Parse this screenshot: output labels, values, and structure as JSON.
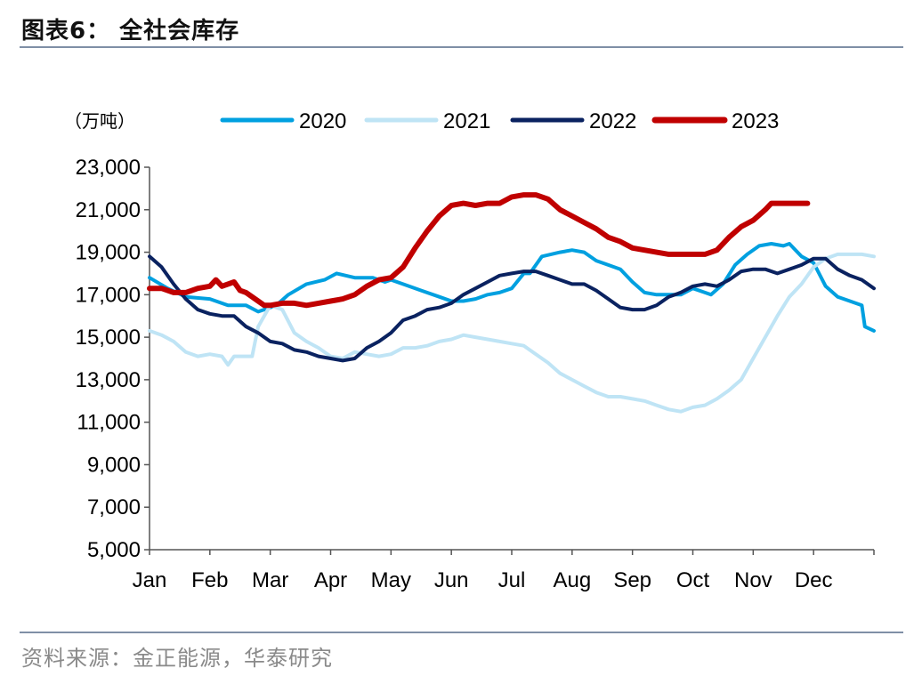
{
  "figure": {
    "title": "图表6：  全社会库存",
    "source": "资料来源：金正能源，华泰研究"
  },
  "chart_data": {
    "type": "line",
    "unit_label": "（万吨）",
    "ylim": [
      5000,
      23000
    ],
    "yticks": [
      5000,
      7000,
      9000,
      11000,
      13000,
      15000,
      17000,
      19000,
      21000,
      23000
    ],
    "ytick_labels": [
      "5,000",
      "7,000",
      "9,000",
      "11,000",
      "13,000",
      "15,000",
      "17,000",
      "19,000",
      "21,000",
      "23,000"
    ],
    "xlim": [
      0,
      12
    ],
    "x_labels": [
      "Jan",
      "Feb",
      "Mar",
      "Apr",
      "May",
      "Jun",
      "Jul",
      "Aug",
      "Sep",
      "Oct",
      "Nov",
      "Dec"
    ],
    "grid": false,
    "legend_position": "top",
    "series": [
      {
        "name": "2020",
        "color": "#00a0e0",
        "points": [
          [
            0,
            17800
          ],
          [
            0.3,
            17300
          ],
          [
            0.6,
            16900
          ],
          [
            1.0,
            16800
          ],
          [
            1.3,
            16500
          ],
          [
            1.6,
            16500
          ],
          [
            1.8,
            16200
          ],
          [
            2.0,
            16400
          ],
          [
            2.1,
            16500
          ],
          [
            2.3,
            17000
          ],
          [
            2.6,
            17500
          ],
          [
            2.9,
            17700
          ],
          [
            3.1,
            18000
          ],
          [
            3.4,
            17800
          ],
          [
            3.7,
            17800
          ],
          [
            3.9,
            17600
          ],
          [
            4.0,
            17700
          ],
          [
            4.2,
            17500
          ],
          [
            4.5,
            17200
          ],
          [
            4.8,
            16900
          ],
          [
            5.0,
            16700
          ],
          [
            5.2,
            16700
          ],
          [
            5.4,
            16800
          ],
          [
            5.6,
            17000
          ],
          [
            5.8,
            17100
          ],
          [
            6.0,
            17300
          ],
          [
            6.2,
            18000
          ],
          [
            6.3,
            18000
          ],
          [
            6.5,
            18800
          ],
          [
            6.8,
            19000
          ],
          [
            7.0,
            19100
          ],
          [
            7.2,
            19000
          ],
          [
            7.4,
            18600
          ],
          [
            7.6,
            18400
          ],
          [
            7.8,
            18200
          ],
          [
            8.0,
            17600
          ],
          [
            8.2,
            17100
          ],
          [
            8.4,
            17000
          ],
          [
            8.6,
            17000
          ],
          [
            8.8,
            17000
          ],
          [
            9.0,
            17300
          ],
          [
            9.2,
            17100
          ],
          [
            9.3,
            17000
          ],
          [
            9.5,
            17500
          ],
          [
            9.7,
            18400
          ],
          [
            9.9,
            18900
          ],
          [
            10.1,
            19300
          ],
          [
            10.3,
            19400
          ],
          [
            10.5,
            19300
          ],
          [
            10.6,
            19400
          ],
          [
            10.8,
            18800
          ],
          [
            11.0,
            18500
          ],
          [
            11.2,
            17400
          ],
          [
            11.4,
            16900
          ],
          [
            11.6,
            16700
          ],
          [
            11.8,
            16500
          ],
          [
            11.85,
            15500
          ],
          [
            12.0,
            15300
          ]
        ]
      },
      {
        "name": "2021",
        "color": "#bfe4f5",
        "points": [
          [
            0,
            15300
          ],
          [
            0.2,
            15100
          ],
          [
            0.4,
            14800
          ],
          [
            0.6,
            14300
          ],
          [
            0.8,
            14100
          ],
          [
            1.0,
            14200
          ],
          [
            1.2,
            14100
          ],
          [
            1.3,
            13700
          ],
          [
            1.4,
            14100
          ],
          [
            1.6,
            14100
          ],
          [
            1.7,
            14100
          ],
          [
            1.8,
            15500
          ],
          [
            2.0,
            16500
          ],
          [
            2.2,
            16300
          ],
          [
            2.4,
            15200
          ],
          [
            2.6,
            14800
          ],
          [
            2.8,
            14500
          ],
          [
            3.0,
            14100
          ],
          [
            3.2,
            14000
          ],
          [
            3.4,
            14300
          ],
          [
            3.6,
            14200
          ],
          [
            3.8,
            14100
          ],
          [
            4.0,
            14200
          ],
          [
            4.2,
            14500
          ],
          [
            4.4,
            14500
          ],
          [
            4.6,
            14600
          ],
          [
            4.8,
            14800
          ],
          [
            5.0,
            14900
          ],
          [
            5.2,
            15100
          ],
          [
            5.4,
            15000
          ],
          [
            5.6,
            14900
          ],
          [
            5.8,
            14800
          ],
          [
            6.0,
            14700
          ],
          [
            6.2,
            14600
          ],
          [
            6.4,
            14200
          ],
          [
            6.6,
            13800
          ],
          [
            6.8,
            13300
          ],
          [
            7.0,
            13000
          ],
          [
            7.2,
            12700
          ],
          [
            7.4,
            12400
          ],
          [
            7.6,
            12200
          ],
          [
            7.8,
            12200
          ],
          [
            8.0,
            12100
          ],
          [
            8.2,
            12000
          ],
          [
            8.4,
            11800
          ],
          [
            8.6,
            11600
          ],
          [
            8.8,
            11500
          ],
          [
            9.0,
            11700
          ],
          [
            9.2,
            11800
          ],
          [
            9.4,
            12100
          ],
          [
            9.6,
            12500
          ],
          [
            9.8,
            13000
          ],
          [
            10.0,
            14000
          ],
          [
            10.2,
            15000
          ],
          [
            10.4,
            16000
          ],
          [
            10.6,
            16900
          ],
          [
            10.8,
            17500
          ],
          [
            11.0,
            18300
          ],
          [
            11.2,
            18700
          ],
          [
            11.4,
            18900
          ],
          [
            11.6,
            18900
          ],
          [
            11.8,
            18900
          ],
          [
            12.0,
            18800
          ]
        ]
      },
      {
        "name": "2022",
        "color": "#0a2260",
        "points": [
          [
            0,
            18800
          ],
          [
            0.2,
            18300
          ],
          [
            0.4,
            17500
          ],
          [
            0.6,
            16800
          ],
          [
            0.8,
            16300
          ],
          [
            1.0,
            16100
          ],
          [
            1.2,
            16000
          ],
          [
            1.4,
            16000
          ],
          [
            1.6,
            15500
          ],
          [
            1.8,
            15200
          ],
          [
            2.0,
            14800
          ],
          [
            2.2,
            14700
          ],
          [
            2.4,
            14400
          ],
          [
            2.6,
            14300
          ],
          [
            2.8,
            14100
          ],
          [
            3.0,
            14000
          ],
          [
            3.2,
            13900
          ],
          [
            3.4,
            14000
          ],
          [
            3.6,
            14500
          ],
          [
            3.8,
            14800
          ],
          [
            4.0,
            15200
          ],
          [
            4.2,
            15800
          ],
          [
            4.4,
            16000
          ],
          [
            4.6,
            16300
          ],
          [
            4.8,
            16400
          ],
          [
            5.0,
            16600
          ],
          [
            5.2,
            17000
          ],
          [
            5.4,
            17300
          ],
          [
            5.6,
            17600
          ],
          [
            5.8,
            17900
          ],
          [
            6.0,
            18000
          ],
          [
            6.2,
            18100
          ],
          [
            6.4,
            18100
          ],
          [
            6.6,
            17900
          ],
          [
            6.8,
            17700
          ],
          [
            7.0,
            17500
          ],
          [
            7.2,
            17500
          ],
          [
            7.4,
            17200
          ],
          [
            7.6,
            16800
          ],
          [
            7.8,
            16400
          ],
          [
            8.0,
            16300
          ],
          [
            8.2,
            16300
          ],
          [
            8.4,
            16500
          ],
          [
            8.6,
            16900
          ],
          [
            8.8,
            17100
          ],
          [
            9.0,
            17400
          ],
          [
            9.2,
            17500
          ],
          [
            9.4,
            17400
          ],
          [
            9.6,
            17700
          ],
          [
            9.8,
            18100
          ],
          [
            10.0,
            18200
          ],
          [
            10.2,
            18200
          ],
          [
            10.4,
            18000
          ],
          [
            10.6,
            18200
          ],
          [
            10.8,
            18400
          ],
          [
            11.0,
            18700
          ],
          [
            11.2,
            18700
          ],
          [
            11.4,
            18200
          ],
          [
            11.6,
            17900
          ],
          [
            11.8,
            17700
          ],
          [
            12.0,
            17300
          ]
        ]
      },
      {
        "name": "2023",
        "color": "#c00000",
        "points": [
          [
            0,
            17300
          ],
          [
            0.2,
            17300
          ],
          [
            0.4,
            17100
          ],
          [
            0.6,
            17100
          ],
          [
            0.8,
            17300
          ],
          [
            1.0,
            17400
          ],
          [
            1.1,
            17700
          ],
          [
            1.2,
            17400
          ],
          [
            1.4,
            17600
          ],
          [
            1.5,
            17200
          ],
          [
            1.6,
            17100
          ],
          [
            1.8,
            16700
          ],
          [
            1.9,
            16500
          ],
          [
            2.0,
            16500
          ],
          [
            2.2,
            16600
          ],
          [
            2.4,
            16600
          ],
          [
            2.6,
            16500
          ],
          [
            2.8,
            16600
          ],
          [
            3.0,
            16700
          ],
          [
            3.2,
            16800
          ],
          [
            3.4,
            17000
          ],
          [
            3.6,
            17400
          ],
          [
            3.8,
            17700
          ],
          [
            4.0,
            17800
          ],
          [
            4.2,
            18300
          ],
          [
            4.4,
            19200
          ],
          [
            4.6,
            20000
          ],
          [
            4.8,
            20700
          ],
          [
            5.0,
            21200
          ],
          [
            5.2,
            21300
          ],
          [
            5.4,
            21200
          ],
          [
            5.6,
            21300
          ],
          [
            5.8,
            21300
          ],
          [
            6.0,
            21600
          ],
          [
            6.2,
            21700
          ],
          [
            6.4,
            21700
          ],
          [
            6.6,
            21500
          ],
          [
            6.8,
            21000
          ],
          [
            7.0,
            20700
          ],
          [
            7.2,
            20400
          ],
          [
            7.4,
            20100
          ],
          [
            7.6,
            19700
          ],
          [
            7.8,
            19500
          ],
          [
            8.0,
            19200
          ],
          [
            8.2,
            19100
          ],
          [
            8.4,
            19000
          ],
          [
            8.6,
            18900
          ],
          [
            8.8,
            18900
          ],
          [
            9.0,
            18900
          ],
          [
            9.2,
            18900
          ],
          [
            9.4,
            19100
          ],
          [
            9.6,
            19700
          ],
          [
            9.8,
            20200
          ],
          [
            10.0,
            20500
          ],
          [
            10.2,
            21000
          ],
          [
            10.3,
            21300
          ],
          [
            10.5,
            21300
          ],
          [
            10.7,
            21300
          ],
          [
            10.9,
            21300
          ]
        ]
      }
    ]
  }
}
